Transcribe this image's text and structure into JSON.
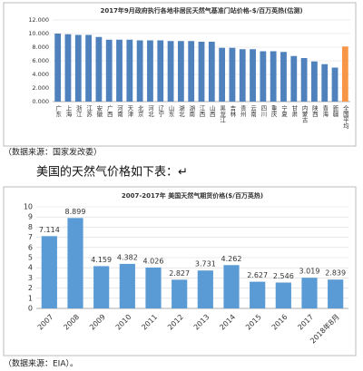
{
  "chart_data": [
    {
      "type": "bar",
      "title": "2017年9月政府执行各地非居民天然气基准门站价格-$/百万英热(估测)",
      "categories": [
        "广东",
        "上海",
        "浙江",
        "江苏",
        "安徽",
        "广西",
        "河南",
        "天津",
        "北京",
        "河北",
        "辽宁",
        "山东",
        "湖北",
        "湖南",
        "江西",
        "山西",
        "黑龙江",
        "吉林",
        "贵州",
        "云南",
        "四川",
        "重庆",
        "宁夏",
        "甘肃",
        "内蒙古",
        "陕西",
        "青海",
        "新疆",
        "全国平均"
      ],
      "values": [
        10.0,
        9.9,
        9.8,
        9.8,
        9.5,
        9.1,
        9.1,
        9.1,
        9.0,
        9.0,
        9.0,
        8.9,
        8.9,
        8.9,
        8.8,
        8.8,
        7.9,
        7.9,
        7.7,
        7.7,
        7.4,
        7.4,
        7.3,
        6.7,
        6.4,
        5.9,
        5.5,
        5.0,
        8.1
      ],
      "colors": [
        "#4f81bd",
        "#4f81bd",
        "#4f81bd",
        "#4f81bd",
        "#4f81bd",
        "#4f81bd",
        "#4f81bd",
        "#4f81bd",
        "#4f81bd",
        "#4f81bd",
        "#4f81bd",
        "#4f81bd",
        "#4f81bd",
        "#4f81bd",
        "#4f81bd",
        "#4f81bd",
        "#4f81bd",
        "#4f81bd",
        "#4f81bd",
        "#4f81bd",
        "#4f81bd",
        "#4f81bd",
        "#4f81bd",
        "#4f81bd",
        "#4f81bd",
        "#4f81bd",
        "#4f81bd",
        "#4f81bd",
        "#f79646"
      ],
      "ylim": [
        0,
        12
      ],
      "yticks": [
        {
          "value": 0,
          "label": "0.000"
        },
        {
          "value": 2,
          "label": "2.000"
        },
        {
          "value": 4,
          "label": "4.000"
        },
        {
          "value": 6,
          "label": "6.000"
        },
        {
          "value": 8,
          "label": "8.000"
        },
        {
          "value": 10,
          "label": "10.000"
        },
        {
          "value": 12,
          "label": "12.000"
        }
      ],
      "grid": true,
      "vertical_labels": true,
      "data_labels": false
    },
    {
      "type": "bar",
      "title": "2007-2017年 美国天然气期货价格($/百万英热)",
      "categories": [
        "2007",
        "2008",
        "2009",
        "2010",
        "2011",
        "2012",
        "2013",
        "2014",
        "2015",
        "2016",
        "2017",
        "2018年8月"
      ],
      "values": [
        7.114,
        8.899,
        4.159,
        4.382,
        4.026,
        2.827,
        3.731,
        4.262,
        2.627,
        2.546,
        3.019,
        2.839
      ],
      "color": "#5b9bd5",
      "ylim": [
        0,
        10
      ],
      "yticks": [
        0,
        1,
        2,
        3,
        4,
        5,
        6,
        7,
        8,
        9,
        10
      ],
      "grid": true,
      "vertical_labels": false,
      "data_labels": true
    }
  ],
  "source_1": "（数据来源：国家发改委）",
  "intro": "美国的天然气价格如下表：↵",
  "source_2": "（数据来源：EIA）。"
}
